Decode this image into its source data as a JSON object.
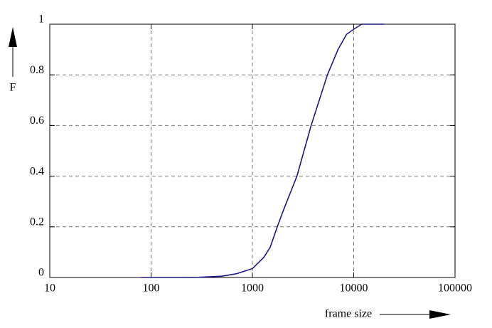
{
  "chart_data": {
    "type": "line",
    "xlabel": "frame size",
    "ylabel": "F",
    "xscale": "log",
    "grid": true,
    "color": "#1a1a80",
    "x": [
      80,
      200,
      300,
      500,
      700,
      1000,
      1300,
      1500,
      1760,
      2000,
      2750,
      3800,
      5500,
      7000,
      8500,
      10000,
      12000,
      20000
    ],
    "values": [
      0,
      0,
      0.001,
      0.005,
      0.015,
      0.035,
      0.08,
      0.12,
      0.2,
      0.26,
      0.4,
      0.6,
      0.8,
      0.9,
      0.96,
      0.98,
      1,
      1
    ],
    "xlim": [
      10,
      100000
    ],
    "xticks": [
      10,
      100,
      1000,
      10000,
      100000
    ],
    "ylim": [
      0,
      1
    ],
    "yticks": [
      0,
      0.2,
      0.4,
      0.6,
      0.8,
      1
    ]
  }
}
